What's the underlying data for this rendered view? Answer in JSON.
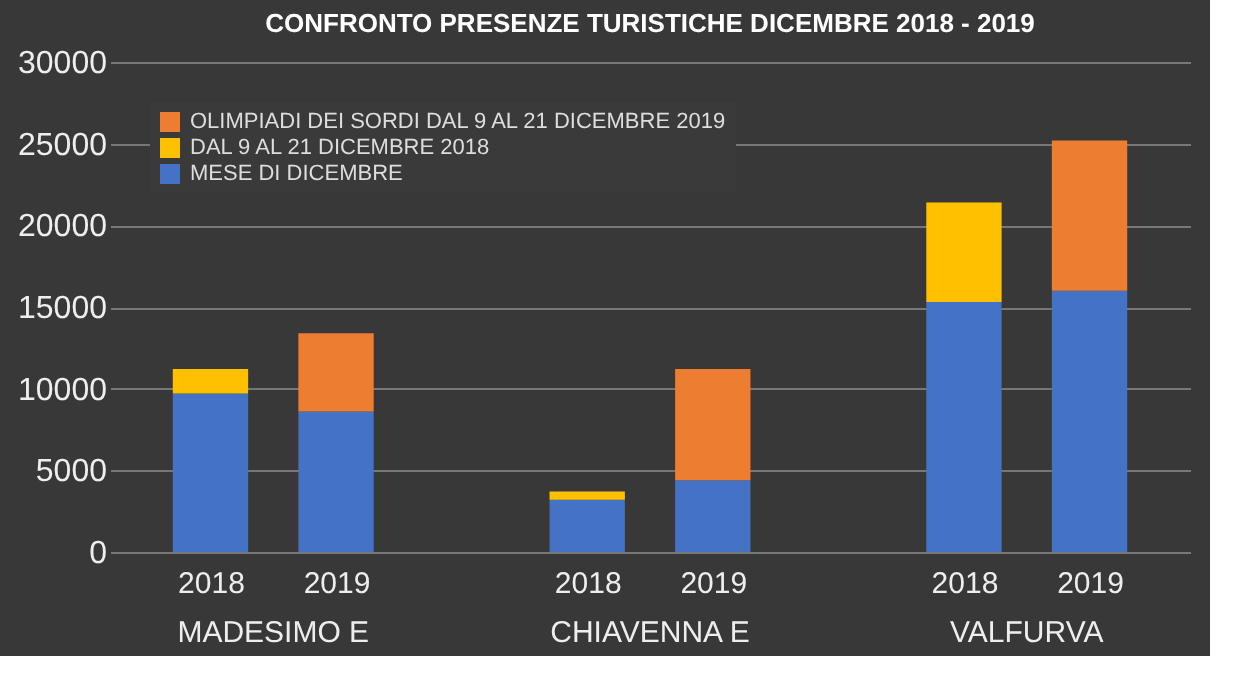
{
  "chart_data": {
    "type": "bar",
    "stacked": true,
    "title": "CONFRONTO PRESENZE TURISTICHE DICEMBRE 2018 - 2019",
    "categories": [
      "2018",
      "2019",
      "2018",
      "2019",
      "2018",
      "2019"
    ],
    "series": [
      {
        "name": "MESE DI DICEMBRE",
        "color": "#4472c4",
        "values": [
          9700,
          8600,
          3200,
          4400,
          15300,
          16000
        ]
      },
      {
        "name": "DAL 9 AL 21 DICEMBRE 2018",
        "color": "#ffc000",
        "values": [
          1500,
          null,
          500,
          null,
          6100,
          null
        ]
      },
      {
        "name": "OLIMPIADI DEI SORDI DAL 9 AL 21 DICEMBRE 2019",
        "color": "#ed7d31",
        "values": [
          null,
          4800,
          null,
          6800,
          null,
          9200
        ]
      }
    ],
    "annotations": [
      "MADESIMO E",
      "CHIAVENNA E",
      "VALFURVA"
    ],
    "ylim": [
      0,
      30000
    ],
    "yticks": [
      0,
      5000,
      10000,
      15000,
      20000,
      25000,
      30000
    ],
    "grid": "y",
    "legend": "top left"
  }
}
